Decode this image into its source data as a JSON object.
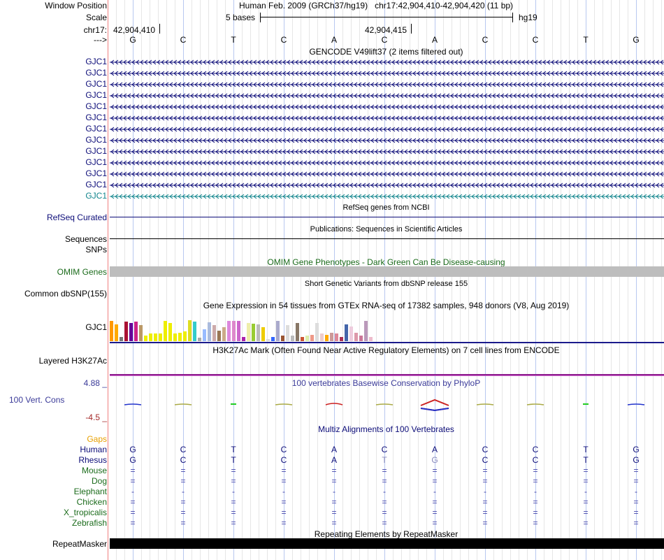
{
  "colors": {
    "gene_blue": "#0c0c78",
    "gene_light": "#12858d",
    "omim_green": "#1b6b1b",
    "orange": "#e8a000",
    "gtex_line": "#1a1a8c",
    "h3k_line": "#8e1c8e",
    "cons_blue": "#3b3b99",
    "cons_red": "#a52a2a",
    "grey_bar": "#bdbdbd",
    "repeat": "#000000"
  },
  "header": {
    "window_position_label": "Window Position",
    "window_position_value": "Human Feb. 2009 (GRCh37/hg19)   chr17:42,904,410-42,904,420 (11 bp)",
    "scale_label": "Scale",
    "scale_value": "5 bases",
    "scale_assembly": "hg19",
    "chr_label": "chr17:",
    "coord_1": "42,904,410",
    "coord_2": "42,904,415",
    "strand_label": "--->"
  },
  "sequence": [
    "G",
    "C",
    "T",
    "C",
    "A",
    "C",
    "A",
    "C",
    "C",
    "T",
    "G"
  ],
  "gencode": {
    "title": "GENCODE V49lift37 (2 items filtered out)",
    "gene_labels": [
      "GJC1",
      "GJC1",
      "GJC1",
      "GJC1",
      "GJC1",
      "GJC1",
      "GJC1",
      "GJC1",
      "GJC1",
      "GJC1",
      "GJC1",
      "GJC1",
      "GJC1"
    ]
  },
  "refseq": {
    "title": "RefSeq genes from NCBI",
    "label": "RefSeq Curated"
  },
  "publications": {
    "title": "Publications: Sequences in Scientific Articles",
    "label": "Sequences"
  },
  "snps": {
    "label": "SNPs"
  },
  "omim": {
    "title": "OMIM Gene Phenotypes - Dark Green Can Be Disease-causing",
    "label": "OMIM Genes"
  },
  "dbsnp": {
    "title": "Short Genetic Variants from dbSNP release 155",
    "label": "Common dbSNP(155)"
  },
  "gtex": {
    "title": "Gene Expression in 54 tissues from GTEx RNA-seq of 17382 samples, 948 donors (V8, Aug 2019)",
    "label": "GJC1",
    "bar_levels": [
      0.95,
      0.8,
      0.2,
      0.92,
      0.85,
      0.92,
      0.75,
      0.25,
      0.35,
      0.35,
      0.35,
      0.95,
      0.88,
      0.35,
      0.4,
      0.45,
      1.0,
      0.92,
      0.15,
      0.55,
      0.9,
      0.75,
      0.5,
      0.65,
      0.95,
      0.95,
      0.95,
      0.2,
      0.88,
      0.82,
      0.8,
      0.65,
      0.1,
      0.2,
      0.95,
      0.25,
      0.75,
      0.25,
      0.85,
      0.2,
      0.25,
      0.3,
      0.85,
      0.35,
      0.3,
      0.4,
      0.35,
      0.2,
      0.8,
      0.7,
      0.4,
      0.25,
      0.95,
      0.2
    ],
    "bar_colors": [
      "#ff9900",
      "#ffaa00",
      "#777777",
      "#aa1133",
      "#660099",
      "#cc2288",
      "#bb9966",
      "#eeee00",
      "#eeee00",
      "#eeee00",
      "#eeee00",
      "#eeee00",
      "#eeee00",
      "#eeee00",
      "#eeee00",
      "#eeee00",
      "#dddd22",
      "#33cccc",
      "#aaaaaa",
      "#99bbff",
      "#aabbdd",
      "#ccaaaa",
      "#997755",
      "#ccaa88",
      "#dd88dd",
      "#dd88cc",
      "#cc66cc",
      "#aa22aa",
      "#eeeeaa",
      "#99cc33",
      "#bbbbbb",
      "#eecc00",
      "#dddddd",
      "#3366ff",
      "#aaaacc",
      "#995533",
      "#dddddd",
      "#bbbbbb",
      "#887766",
      "#cc5533",
      "#ddeeaa",
      "#ee9988",
      "#dddddd",
      "#eecccc",
      "#ffaa00",
      "#cc9999",
      "#dd8899",
      "#aa3355",
      "#4466aa",
      "#eeccdd",
      "#dd99aa",
      "#cc7799",
      "#bb99bb",
      "#eebbcc"
    ]
  },
  "h3k27ac": {
    "title": "H3K27Ac Mark (Often Found Near Active Regulatory Elements) on 7 cell lines from ENCODE",
    "label": "Layered H3K27Ac"
  },
  "conservation": {
    "title": "100 vertebrates Basewise Conservation by PhyloP",
    "label": "100 Vert. Cons",
    "max_label": "4.88 _",
    "min_label": "-4.5 _"
  },
  "multiz": {
    "title": "Multiz Alignments of 100 Vertebrates",
    "gaps_label": "Gaps",
    "species": [
      {
        "name": "Human",
        "row": [
          "G",
          "C",
          "T",
          "C",
          "A",
          "C",
          "A",
          "C",
          "C",
          "T",
          "G"
        ]
      },
      {
        "name": "Rhesus",
        "row": [
          "G",
          "C",
          "T",
          "C",
          "A",
          "T",
          "G",
          "C",
          "C",
          "T",
          "G"
        ]
      },
      {
        "name": "Mouse",
        "row": [
          "=",
          "=",
          "=",
          "=",
          "=",
          "=",
          "=",
          "=",
          "=",
          "=",
          "="
        ]
      },
      {
        "name": "Dog",
        "row": [
          "=",
          "=",
          "=",
          "=",
          "=",
          "=",
          "=",
          "=",
          "=",
          "=",
          "="
        ]
      },
      {
        "name": "Elephant",
        "row": [
          "-",
          "-",
          "-",
          "-",
          "-",
          "-",
          "-",
          "-",
          "-",
          "-",
          "-"
        ]
      },
      {
        "name": "Chicken",
        "row": [
          "=",
          "=",
          "=",
          "=",
          "=",
          "=",
          "=",
          "=",
          "=",
          "=",
          "="
        ]
      },
      {
        "name": "X_tropicalis",
        "row": [
          "=",
          "=",
          "=",
          "=",
          "=",
          "=",
          "=",
          "=",
          "=",
          "=",
          "="
        ]
      },
      {
        "name": "Zebrafish",
        "row": [
          "=",
          "=",
          "=",
          "=",
          "=",
          "=",
          "=",
          "=",
          "=",
          "=",
          "="
        ]
      }
    ]
  },
  "repeatmasker": {
    "title": "Repeating Elements by RepeatMasker",
    "label": "RepeatMasker"
  }
}
